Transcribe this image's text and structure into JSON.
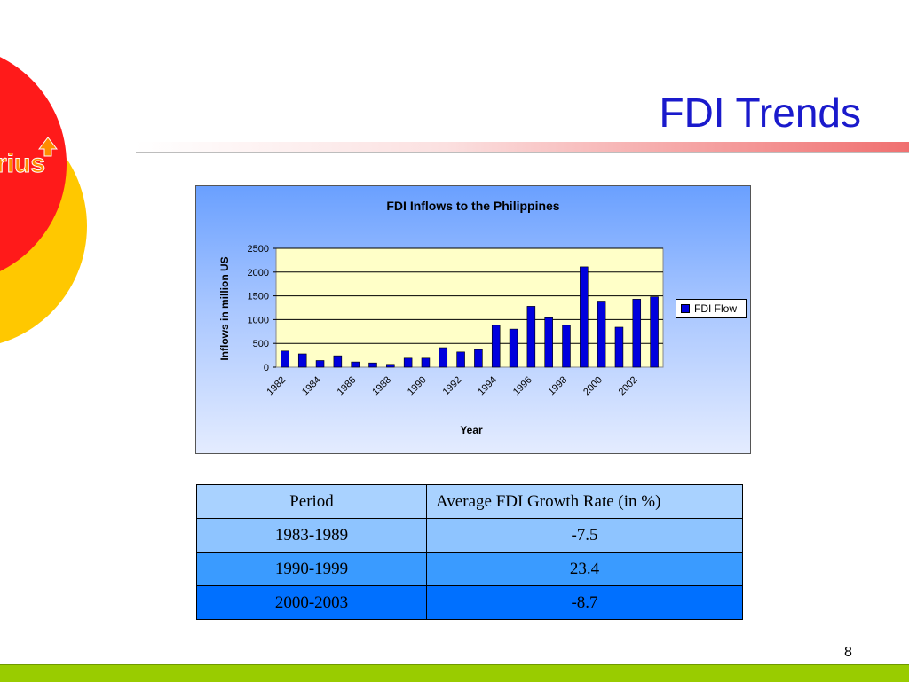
{
  "slide": {
    "title": "FDI Trends",
    "logo_text": "rius",
    "page_number": "8",
    "colors": {
      "title": "#1a1acc",
      "footer": "#99cc00",
      "bar": "#0000dd"
    }
  },
  "chart_data": {
    "type": "bar",
    "title": "FDI Inflows to the Philippines",
    "xlabel": "Year",
    "ylabel": "Inflows in million US",
    "categories": [
      "1982",
      "1983",
      "1984",
      "1985",
      "1986",
      "1987",
      "1988",
      "1989",
      "1990",
      "1991",
      "1992",
      "1993",
      "1994",
      "1995",
      "1996",
      "1997",
      "1998",
      "1999",
      "2000",
      "2001",
      "2002",
      "2003"
    ],
    "tick_labels": [
      "1982",
      "1984",
      "1986",
      "1988",
      "1990",
      "1992",
      "1994",
      "1996",
      "1998",
      "2000",
      "2002"
    ],
    "series": [
      {
        "name": "FDI Flow",
        "values": [
          340,
          280,
          140,
          240,
          110,
          90,
          60,
          190,
          190,
          410,
          320,
          370,
          880,
          800,
          1280,
          1040,
          880,
          2110,
          1390,
          840,
          1430,
          1480
        ]
      }
    ],
    "ylim": [
      0,
      2500
    ],
    "yticks": [
      0,
      500,
      1000,
      1500,
      2000,
      2500
    ],
    "grid": true,
    "legend": "right"
  },
  "table": {
    "headers": [
      "Period",
      "Average FDI Growth Rate (in %)"
    ],
    "rows": [
      [
        "1983-1989",
        "-7.5"
      ],
      [
        "1990-1999",
        "23.4"
      ],
      [
        "2000-2003",
        "-8.7"
      ]
    ]
  }
}
